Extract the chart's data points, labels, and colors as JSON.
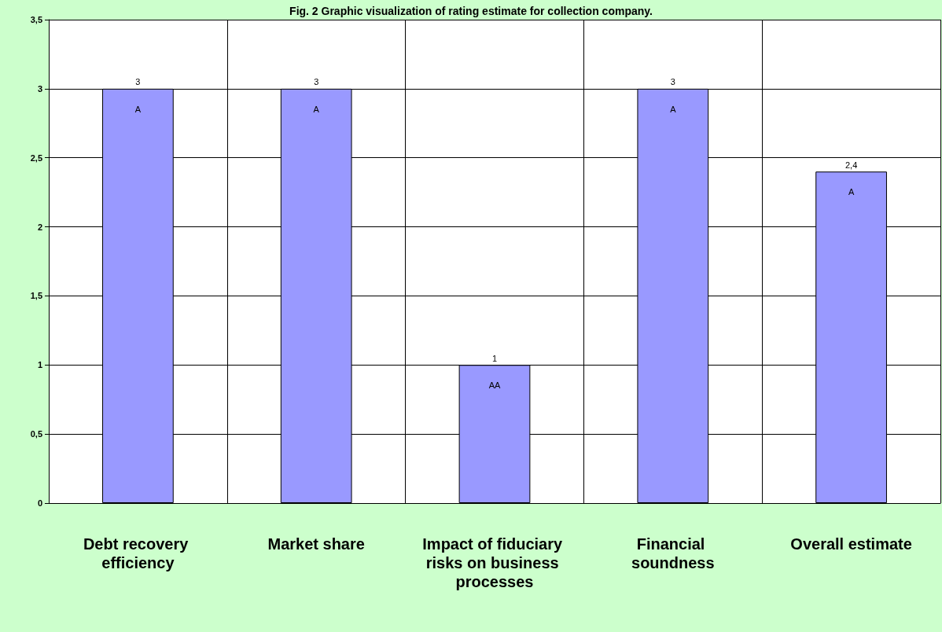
{
  "chart_data": {
    "type": "bar",
    "title": "Fig. 2 Graphic visualization of rating estimate for collection company.",
    "categories": [
      "Debt recovery efficiency",
      "Market share",
      "Impact of fiduciary risks on business processes",
      "Financial soundness",
      "Overall estimate"
    ],
    "values": [
      3,
      3,
      1,
      3,
      2.4
    ],
    "value_labels": [
      "3",
      "3",
      "1",
      "3",
      "2,4"
    ],
    "color": "#9999ff",
    "ylim": [
      0,
      3.5
    ],
    "yticks": [
      0,
      {
        "value": 0.5,
        "label": "0,5"
      },
      1,
      {
        "value": 1.5,
        "label": "1,5"
      },
      2,
      {
        "value": 2.5,
        "label": "2,5"
      },
      3,
      {
        "value": 3.5,
        "label": "3,5"
      }
    ],
    "grid": true,
    "annotations": [
      "A",
      "A",
      "AA",
      "A",
      "A"
    ]
  }
}
